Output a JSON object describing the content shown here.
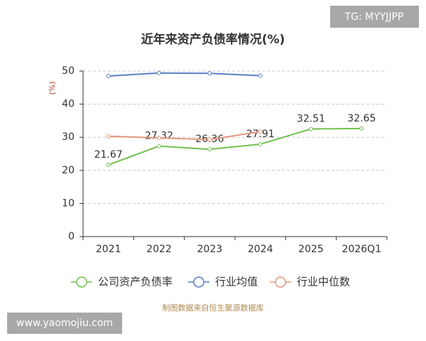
{
  "chart_data": {
    "type": "line",
    "title": "近年来资产负债率情况(%)",
    "y_label": "(%)",
    "categories": [
      "2021",
      "2022",
      "2023",
      "2024",
      "2025",
      "2026Q1"
    ],
    "series": [
      {
        "name": "公司资产负债率",
        "color": "#72c04f",
        "values": [
          21.67,
          27.32,
          26.36,
          27.91,
          32.51,
          32.65
        ],
        "labels": true
      },
      {
        "name": "行业均值",
        "color": "#5b7fc7",
        "values": [
          48.5,
          49.4,
          49.3,
          48.6,
          null,
          null
        ]
      },
      {
        "name": "行业中位数",
        "color": "#e5977a",
        "values": [
          30.3,
          29.8,
          29.3,
          31.7,
          null,
          null
        ]
      }
    ],
    "ylim": [
      0,
      50
    ],
    "yticks": [
      0,
      10,
      20,
      30,
      40,
      50
    ],
    "grid": true,
    "source": "制图数据来自恒生聚源数据库"
  },
  "watermarks": [
    "TG: MYYJJPP",
    "www.yaomojiu.com"
  ]
}
